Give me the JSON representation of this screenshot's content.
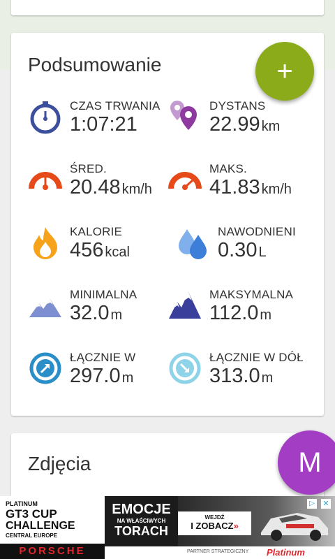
{
  "summary": {
    "title": "Podsumowanie",
    "add_button": "+",
    "stats": [
      {
        "label": "CZAS TRWANIA",
        "value": "1:07:21",
        "unit": "",
        "icon": "stopwatch-icon",
        "color": "#3b4f9c"
      },
      {
        "label": "DYSTANS",
        "value": "22.99",
        "unit": "km",
        "icon": "map-pins-icon",
        "color": "#8e3a9f"
      },
      {
        "label": "ŚRED.",
        "value": "20.48",
        "unit": "km/h",
        "icon": "speedometer-avg-icon",
        "color": "#e64a19"
      },
      {
        "label": "MAKS.",
        "value": "41.83",
        "unit": "km/h",
        "icon": "speedometer-max-icon",
        "color": "#e64a19"
      },
      {
        "label": "KALORIE",
        "value": "456",
        "unit": "kcal",
        "icon": "flame-icon",
        "color": "#f6a21a"
      },
      {
        "label": "NAWODNIENI",
        "value": "0.30",
        "unit": "L",
        "icon": "water-drops-icon",
        "color": "#4f8fe0"
      },
      {
        "label": "MINIMALNA",
        "value": "32.0",
        "unit": "m",
        "icon": "mountain-low-icon",
        "color": "#6a7cc4"
      },
      {
        "label": "MAKSYMALNA",
        "value": "112.0",
        "unit": "m",
        "icon": "mountain-high-icon",
        "color": "#3b3f9c"
      },
      {
        "label": "ŁĄCZNIE W",
        "value": "297.0",
        "unit": "m",
        "icon": "ascent-arrow-icon",
        "color": "#2a8ec8"
      },
      {
        "label": "ŁĄCZNIE W DÓŁ",
        "value": "313.0",
        "unit": "m",
        "icon": "descent-arrow-icon",
        "color": "#8fd3e8"
      }
    ]
  },
  "photos": {
    "title": "Zdjęcia",
    "avatar_letter": "M"
  },
  "ad": {
    "left_line1": "PLATINUM",
    "left_line2": "GT3 CUP",
    "left_line3": "CHALLENGE",
    "left_line4": "CENTRAL EUROPE",
    "brand": "PORSCHE",
    "mid_line1": "EMOCJE",
    "mid_line2": "NA WŁAŚCIWYCH",
    "mid_line3": "TORACH",
    "cta_line1": "WEJDŹ",
    "cta_line2": "I ZOBACZ",
    "partner": "PARTNER STRATEGICZNY",
    "partner_brand": "Platinum"
  }
}
